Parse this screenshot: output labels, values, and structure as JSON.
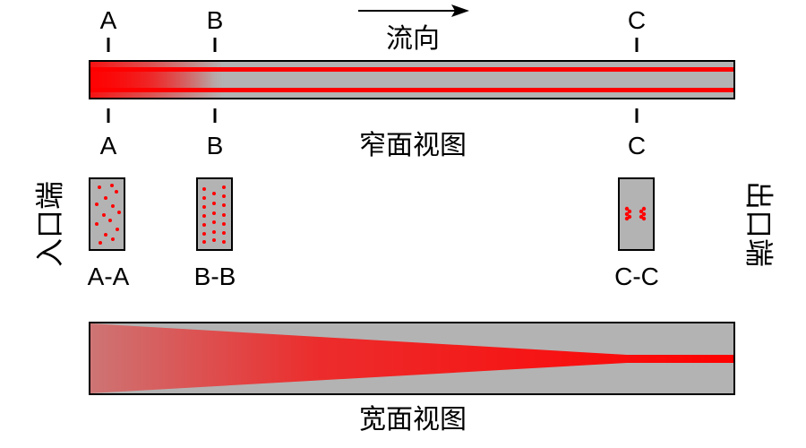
{
  "sections": {
    "a_top": "A",
    "b_top": "B",
    "c_top": "C",
    "a_bottom": "A",
    "b_bottom": "B",
    "c_bottom": "C"
  },
  "flow_label": "流向",
  "narrow_view_label": "窄面视图",
  "wide_view_label": "宽面视图",
  "inlet_label": "入口端",
  "outlet_label": "出口端",
  "cross_sections": [
    {
      "label": "A-A"
    },
    {
      "label": "B-B"
    },
    {
      "label": "C-C"
    }
  ],
  "colors": {
    "channel_fill": "#b3b3b3",
    "particle_red": "#ff0000",
    "outline": "#000000"
  }
}
